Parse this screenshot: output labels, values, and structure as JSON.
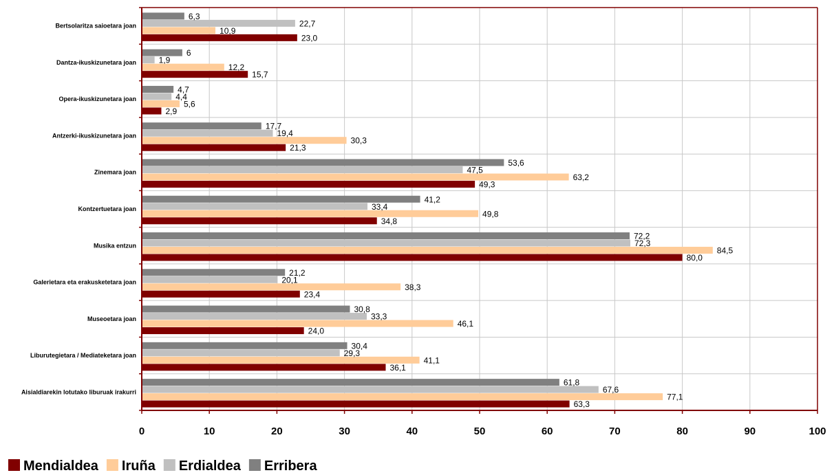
{
  "chart_data": {
    "type": "bar",
    "orientation": "horizontal",
    "categories": [
      "Bertsolaritza saioetara joan",
      "Dantza-ikuskizunetara joan",
      "Opera-ikuskizunetara joan",
      "Antzerki-ikuskizunetara joan",
      "Zinemara joan",
      "Kontzertuetara joan",
      "Musika entzun",
      "Galerietara eta erakusketetara joan",
      "Museoetara joan",
      "Liburutegietara / Mediateketara joan",
      "Aisialdiarekin lotutako liburuak irakurri"
    ],
    "series": [
      {
        "name": "Mendialdea",
        "color": "#800000",
        "values": [
          23.0,
          15.7,
          2.9,
          21.3,
          49.3,
          34.8,
          80.0,
          23.4,
          24.0,
          36.1,
          63.3
        ],
        "labels": [
          "23,0",
          "15,7",
          "2,9",
          "21,3",
          "49,3",
          "34,8",
          "80,0",
          "23,4",
          "24,0",
          "36,1",
          "63,3"
        ]
      },
      {
        "name": "Iruña",
        "color": "#FFCC99",
        "values": [
          10.9,
          12.2,
          5.6,
          30.3,
          63.2,
          49.8,
          84.5,
          38.3,
          46.1,
          41.1,
          77.1
        ],
        "labels": [
          "10,9",
          "12,2",
          "5,6",
          "30,3",
          "63,2",
          "49,8",
          "84,5",
          "38,3",
          "46,1",
          "41,1",
          "77,1"
        ]
      },
      {
        "name": "Erdialdea",
        "color": "#C0C0C0",
        "values": [
          22.7,
          1.9,
          4.4,
          19.4,
          47.5,
          33.4,
          72.3,
          20.1,
          33.3,
          29.3,
          67.6
        ],
        "labels": [
          "22,7",
          "1,9",
          "4,4",
          "19,4",
          "47,5",
          "33,4",
          "72,3",
          "20,1",
          "33,3",
          "29,3",
          "67,6"
        ]
      },
      {
        "name": "Erribera",
        "color": "#808080",
        "values": [
          6.3,
          6,
          4.7,
          17.7,
          53.6,
          41.2,
          72.2,
          21.2,
          30.8,
          30.4,
          61.8
        ],
        "labels": [
          "6,3",
          "6",
          "4,7",
          "17,7",
          "53,6",
          "41,2",
          "72,2",
          "21,2",
          "30,8",
          "30,4",
          "61,8"
        ]
      }
    ],
    "x_ticks": [
      "0",
      "10",
      "20",
      "30",
      "40",
      "50",
      "60",
      "70",
      "80",
      "90",
      "100"
    ],
    "xlim": [
      0,
      100
    ],
    "grid": true,
    "legend_position": "bottom-left",
    "frame_color": "#800000"
  }
}
